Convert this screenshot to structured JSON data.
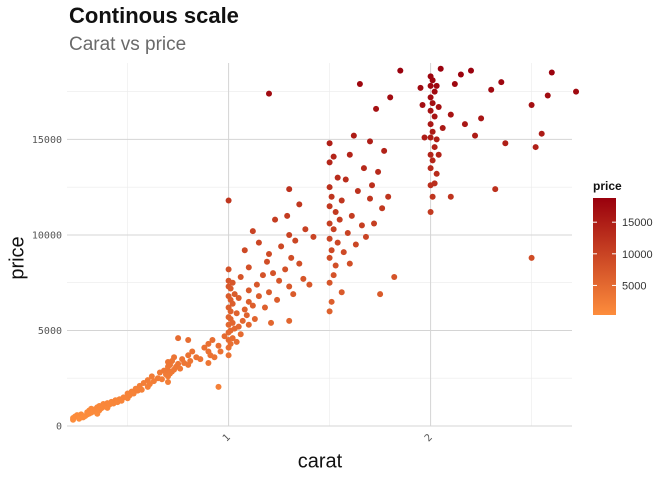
{
  "chart_data": {
    "type": "scatter",
    "title": "Continous scale",
    "subtitle": "Carat vs price",
    "xlabel": "carat",
    "ylabel": "price",
    "xlim": [
      0.2,
      2.7
    ],
    "ylim": [
      0,
      19000
    ],
    "x_ticks": [
      1,
      2
    ],
    "x_tick_labels": [
      "1",
      "2"
    ],
    "y_ticks": [
      0,
      5000,
      10000,
      15000
    ],
    "y_tick_labels": [
      "0",
      "5000",
      "10000",
      "15000"
    ],
    "grid": true,
    "legend": {
      "title": "price",
      "position": "right",
      "type": "colorbar",
      "range": [
        326,
        18823
      ],
      "ticks": [
        5000,
        10000,
        15000
      ],
      "tick_labels": [
        "5000",
        "10000",
        "15000"
      ],
      "low_color": "#fd8d3c",
      "high_color": "#99000d"
    },
    "points": [
      [
        0.23,
        326
      ],
      [
        0.23,
        420
      ],
      [
        0.24,
        500
      ],
      [
        0.25,
        570
      ],
      [
        0.26,
        380
      ],
      [
        0.27,
        610
      ],
      [
        0.28,
        450
      ],
      [
        0.29,
        520
      ],
      [
        0.3,
        600
      ],
      [
        0.3,
        720
      ],
      [
        0.31,
        650
      ],
      [
        0.31,
        810
      ],
      [
        0.32,
        700
      ],
      [
        0.32,
        900
      ],
      [
        0.33,
        760
      ],
      [
        0.34,
        880
      ],
      [
        0.35,
        640
      ],
      [
        0.35,
        980
      ],
      [
        0.36,
        820
      ],
      [
        0.36,
        1050
      ],
      [
        0.37,
        930
      ],
      [
        0.38,
        1000
      ],
      [
        0.38,
        1150
      ],
      [
        0.39,
        1080
      ],
      [
        0.4,
        950
      ],
      [
        0.4,
        1200
      ],
      [
        0.41,
        1120
      ],
      [
        0.42,
        1260
      ],
      [
        0.43,
        1180
      ],
      [
        0.44,
        1350
      ],
      [
        0.45,
        1250
      ],
      [
        0.46,
        1400
      ],
      [
        0.47,
        1320
      ],
      [
        0.48,
        1500
      ],
      [
        0.5,
        1450
      ],
      [
        0.5,
        1700
      ],
      [
        0.51,
        1600
      ],
      [
        0.52,
        1800
      ],
      [
        0.53,
        1700
      ],
      [
        0.54,
        1950
      ],
      [
        0.55,
        1850
      ],
      [
        0.56,
        2100
      ],
      [
        0.57,
        1900
      ],
      [
        0.58,
        2250
      ],
      [
        0.6,
        2050
      ],
      [
        0.6,
        2400
      ],
      [
        0.61,
        2200
      ],
      [
        0.62,
        2600
      ],
      [
        0.63,
        2350
      ],
      [
        0.65,
        2500
      ],
      [
        0.66,
        2800
      ],
      [
        0.67,
        2450
      ],
      [
        0.68,
        2900
      ],
      [
        0.69,
        2700
      ],
      [
        0.7,
        2300
      ],
      [
        0.7,
        2600
      ],
      [
        0.7,
        2900
      ],
      [
        0.7,
        3100
      ],
      [
        0.7,
        3350
      ],
      [
        0.71,
        2750
      ],
      [
        0.71,
        3200
      ],
      [
        0.72,
        2850
      ],
      [
        0.72,
        3400
      ],
      [
        0.73,
        2950
      ],
      [
        0.73,
        3600
      ],
      [
        0.74,
        3100
      ],
      [
        0.75,
        3250
      ],
      [
        0.76,
        3000
      ],
      [
        0.77,
        3500
      ],
      [
        0.78,
        3300
      ],
      [
        0.8,
        3200
      ],
      [
        0.8,
        3700
      ],
      [
        0.81,
        3400
      ],
      [
        0.82,
        3900
      ],
      [
        0.84,
        3600
      ],
      [
        0.86,
        3500
      ],
      [
        0.88,
        4100
      ],
      [
        0.9,
        3300
      ],
      [
        0.9,
        3900
      ],
      [
        0.9,
        4300
      ],
      [
        0.91,
        3700
      ],
      [
        0.92,
        4500
      ],
      [
        0.93,
        3600
      ],
      [
        0.95,
        4200
      ],
      [
        0.96,
        3900
      ],
      [
        0.98,
        4700
      ],
      [
        0.75,
        4600
      ],
      [
        0.8,
        4500
      ],
      [
        0.95,
        2050
      ],
      [
        1.0,
        3700
      ],
      [
        1.0,
        4100
      ],
      [
        1.0,
        4500
      ],
      [
        1.0,
        4900
      ],
      [
        1.0,
        5300
      ],
      [
        1.0,
        5700
      ],
      [
        1.0,
        6200
      ],
      [
        1.0,
        6800
      ],
      [
        1.0,
        7300
      ],
      [
        1.0,
        7600
      ],
      [
        1.0,
        8200
      ],
      [
        1.0,
        11800
      ],
      [
        1.01,
        4300
      ],
      [
        1.01,
        5000
      ],
      [
        1.01,
        5600
      ],
      [
        1.01,
        6000
      ],
      [
        1.01,
        6600
      ],
      [
        1.01,
        7200
      ],
      [
        1.02,
        4600
      ],
      [
        1.02,
        5400
      ],
      [
        1.02,
        6400
      ],
      [
        1.02,
        7500
      ],
      [
        1.03,
        5100
      ],
      [
        1.03,
        6900
      ],
      [
        1.04,
        4400
      ],
      [
        1.04,
        5900
      ],
      [
        1.05,
        5200
      ],
      [
        1.05,
        6700
      ],
      [
        1.06,
        4800
      ],
      [
        1.06,
        7800
      ],
      [
        1.07,
        5500
      ],
      [
        1.08,
        6100
      ],
      [
        1.08,
        9200
      ],
      [
        1.09,
        5800
      ],
      [
        1.1,
        5300
      ],
      [
        1.1,
        6500
      ],
      [
        1.1,
        7100
      ],
      [
        1.1,
        8300
      ],
      [
        1.12,
        6300
      ],
      [
        1.12,
        10200
      ],
      [
        1.13,
        5600
      ],
      [
        1.14,
        7400
      ],
      [
        1.15,
        6800
      ],
      [
        1.15,
        9600
      ],
      [
        1.17,
        7900
      ],
      [
        1.18,
        6200
      ],
      [
        1.19,
        8600
      ],
      [
        1.2,
        7000
      ],
      [
        1.2,
        9000
      ],
      [
        1.2,
        17400
      ],
      [
        1.21,
        5400
      ],
      [
        1.22,
        8000
      ],
      [
        1.23,
        10800
      ],
      [
        1.24,
        6600
      ],
      [
        1.25,
        7600
      ],
      [
        1.26,
        9400
      ],
      [
        1.28,
        8200
      ],
      [
        1.29,
        11000
      ],
      [
        1.3,
        5500
      ],
      [
        1.3,
        7300
      ],
      [
        1.3,
        10000
      ],
      [
        1.3,
        12400
      ],
      [
        1.31,
        8800
      ],
      [
        1.32,
        6900
      ],
      [
        1.33,
        9700
      ],
      [
        1.35,
        8500
      ],
      [
        1.35,
        11600
      ],
      [
        1.37,
        7700
      ],
      [
        1.38,
        10300
      ],
      [
        1.4,
        7400
      ],
      [
        1.42,
        9900
      ],
      [
        1.5,
        6000
      ],
      [
        1.5,
        7500
      ],
      [
        1.5,
        8800
      ],
      [
        1.5,
        9800
      ],
      [
        1.5,
        10600
      ],
      [
        1.5,
        11500
      ],
      [
        1.5,
        12500
      ],
      [
        1.5,
        13800
      ],
      [
        1.5,
        14800
      ],
      [
        1.51,
        6500
      ],
      [
        1.51,
        9200
      ],
      [
        1.51,
        12000
      ],
      [
        1.52,
        7900
      ],
      [
        1.52,
        10300
      ],
      [
        1.52,
        14100
      ],
      [
        1.53,
        8400
      ],
      [
        1.53,
        11200
      ],
      [
        1.54,
        9600
      ],
      [
        1.54,
        13000
      ],
      [
        1.55,
        10800
      ],
      [
        1.56,
        7000
      ],
      [
        1.56,
        11800
      ],
      [
        1.57,
        9100
      ],
      [
        1.58,
        12900
      ],
      [
        1.59,
        10100
      ],
      [
        1.6,
        8500
      ],
      [
        1.6,
        14200
      ],
      [
        1.61,
        11000
      ],
      [
        1.62,
        15200
      ],
      [
        1.63,
        9500
      ],
      [
        1.64,
        12300
      ],
      [
        1.65,
        17900
      ],
      [
        1.66,
        10500
      ],
      [
        1.67,
        13500
      ],
      [
        1.68,
        9900
      ],
      [
        1.7,
        11900
      ],
      [
        1.7,
        14900
      ],
      [
        1.71,
        12600
      ],
      [
        1.72,
        10600
      ],
      [
        1.73,
        16600
      ],
      [
        1.74,
        13300
      ],
      [
        1.75,
        6900
      ],
      [
        1.76,
        11400
      ],
      [
        1.77,
        14400
      ],
      [
        1.79,
        12000
      ],
      [
        1.8,
        17200
      ],
      [
        1.82,
        7800
      ],
      [
        1.85,
        18600
      ],
      [
        1.95,
        17700
      ],
      [
        1.96,
        16800
      ],
      [
        1.97,
        15100
      ],
      [
        2.0,
        11200
      ],
      [
        2.0,
        12600
      ],
      [
        2.0,
        13500
      ],
      [
        2.0,
        14200
      ],
      [
        2.0,
        15100
      ],
      [
        2.0,
        15800
      ],
      [
        2.0,
        16500
      ],
      [
        2.0,
        17200
      ],
      [
        2.0,
        17800
      ],
      [
        2.0,
        18300
      ],
      [
        2.01,
        12000
      ],
      [
        2.01,
        13900
      ],
      [
        2.01,
        15400
      ],
      [
        2.01,
        16900
      ],
      [
        2.01,
        18100
      ],
      [
        2.02,
        12700
      ],
      [
        2.02,
        14600
      ],
      [
        2.02,
        16200
      ],
      [
        2.02,
        17500
      ],
      [
        2.03,
        13200
      ],
      [
        2.03,
        15000
      ],
      [
        2.03,
        17800
      ],
      [
        2.04,
        14200
      ],
      [
        2.04,
        16700
      ],
      [
        2.05,
        18700
      ],
      [
        2.06,
        15600
      ],
      [
        2.1,
        12000
      ],
      [
        2.1,
        16300
      ],
      [
        2.12,
        17900
      ],
      [
        2.15,
        18400
      ],
      [
        2.17,
        15800
      ],
      [
        2.2,
        18600
      ],
      [
        2.22,
        15200
      ],
      [
        2.25,
        16100
      ],
      [
        2.3,
        17600
      ],
      [
        2.32,
        12400
      ],
      [
        2.35,
        18000
      ],
      [
        2.37,
        14800
      ],
      [
        2.5,
        16800
      ],
      [
        2.52,
        14600
      ],
      [
        2.55,
        15300
      ],
      [
        2.58,
        17300
      ],
      [
        2.6,
        18500
      ],
      [
        2.72,
        17500
      ],
      [
        2.5,
        8800
      ]
    ]
  }
}
